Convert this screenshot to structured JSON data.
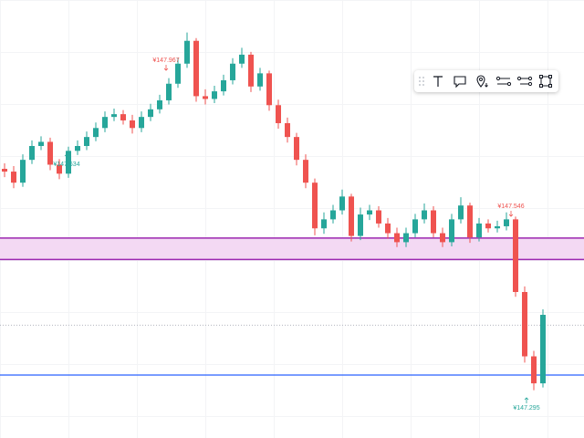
{
  "chart_data": {
    "type": "candlestick",
    "open": [
      147.625,
      147.621,
      147.605,
      147.638,
      147.658,
      147.664,
      147.631,
      147.618,
      147.651,
      147.658,
      147.671,
      147.684,
      147.7,
      147.704,
      147.695,
      147.684,
      147.7,
      147.711,
      147.724,
      147.748,
      147.777,
      147.81,
      147.73,
      147.726,
      147.737,
      147.753,
      147.777,
      147.79,
      147.744,
      147.763,
      147.717,
      147.691,
      147.671,
      147.638,
      147.605,
      147.539,
      147.552,
      147.565,
      147.585,
      147.528,
      147.559,
      147.565,
      147.546,
      147.532,
      147.519,
      147.532,
      147.552,
      147.565,
      147.532,
      147.519,
      147.552,
      147.572,
      147.526,
      147.546,
      147.539,
      147.542,
      147.552,
      147.447,
      147.354,
      147.315
    ],
    "high": [
      147.633,
      147.629,
      147.646,
      147.666,
      147.672,
      147.67,
      147.639,
      147.657,
      147.666,
      147.679,
      147.692,
      147.708,
      147.712,
      147.71,
      147.703,
      147.708,
      147.719,
      147.732,
      147.756,
      147.785,
      147.822,
      147.814,
      147.74,
      147.745,
      147.761,
      147.785,
      147.8,
      147.794,
      147.771,
      147.767,
      147.725,
      147.699,
      147.677,
      147.646,
      147.611,
      147.562,
      147.573,
      147.595,
      147.589,
      147.569,
      147.573,
      147.571,
      147.554,
      147.54,
      147.54,
      147.56,
      147.575,
      147.571,
      147.54,
      147.56,
      147.584,
      147.576,
      147.554,
      147.552,
      147.55,
      147.562,
      147.556,
      147.455,
      147.362,
      147.422
    ],
    "low": [
      147.613,
      147.597,
      147.599,
      147.632,
      147.652,
      147.623,
      147.61,
      147.612,
      147.645,
      147.652,
      147.665,
      147.678,
      147.694,
      147.689,
      147.676,
      147.678,
      147.694,
      147.705,
      147.718,
      147.742,
      147.771,
      147.722,
      147.718,
      147.72,
      147.731,
      147.747,
      147.771,
      147.736,
      147.738,
      147.709,
      147.683,
      147.663,
      147.63,
      147.597,
      147.529,
      147.531,
      147.546,
      147.559,
      147.52,
      147.522,
      147.551,
      147.54,
      147.524,
      147.512,
      147.512,
      147.526,
      147.546,
      147.526,
      147.512,
      147.513,
      147.546,
      147.518,
      147.52,
      147.533,
      147.533,
      147.536,
      147.44,
      147.345,
      147.305,
      147.309
    ],
    "close": [
      147.621,
      147.605,
      147.638,
      147.658,
      147.664,
      147.631,
      147.618,
      147.651,
      147.658,
      147.671,
      147.684,
      147.7,
      147.704,
      147.695,
      147.684,
      147.7,
      147.711,
      147.724,
      147.748,
      147.777,
      147.81,
      147.73,
      147.726,
      147.737,
      147.753,
      147.777,
      147.79,
      147.744,
      147.763,
      147.717,
      147.691,
      147.671,
      147.638,
      147.605,
      147.539,
      147.552,
      147.565,
      147.585,
      147.528,
      147.559,
      147.565,
      147.546,
      147.532,
      147.519,
      147.532,
      147.552,
      147.565,
      147.532,
      147.519,
      147.552,
      147.572,
      147.526,
      147.546,
      147.539,
      147.542,
      147.552,
      147.447,
      147.354,
      147.315,
      147.414
    ],
    "up_color": "#26a69a",
    "down_color": "#ef5350",
    "ylim": [
      147.236,
      147.869
    ],
    "zone": {
      "from": 147.494,
      "to": 147.525,
      "color": "#9c27b0",
      "fill": "#f3d9f3"
    },
    "lines": [
      {
        "value": 147.399,
        "color": "#b2b5be",
        "dashed": true
      },
      {
        "value": 147.327,
        "color": "#2962ff",
        "dashed": false
      }
    ],
    "annotations": [
      {
        "text": "¥147.967",
        "color": "#ef5350"
      },
      {
        "text": "¥147.634",
        "color": "#26a69a"
      },
      {
        "text": "¥147.546",
        "color": "#ef5350"
      },
      {
        "text": "¥147.295",
        "color": "#26a69a"
      }
    ]
  }
}
